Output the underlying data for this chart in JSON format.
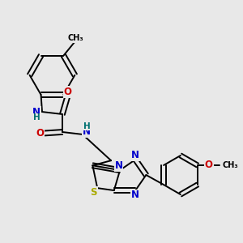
{
  "background_color": "#e8e8e8",
  "figsize": [
    3.0,
    3.0
  ],
  "dpi": 100,
  "atom_colors": {
    "C": "#000000",
    "N": "#0000cc",
    "O": "#cc0000",
    "S": "#aaaa00",
    "H": "#007070"
  },
  "bond_color": "#000000",
  "bond_width": 1.4,
  "font_size_atom": 8.5,
  "font_size_h": 7.5,
  "font_size_methyl": 7.0,
  "xlim": [
    0.0,
    1.0
  ],
  "ylim": [
    0.08,
    1.0
  ]
}
